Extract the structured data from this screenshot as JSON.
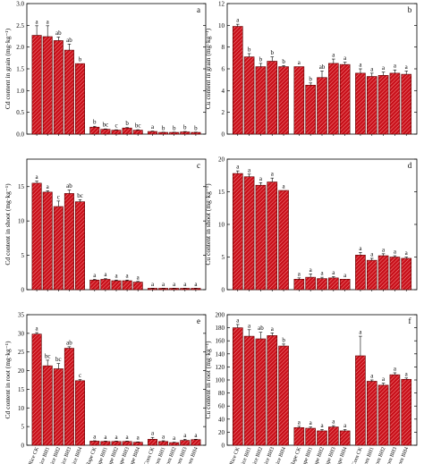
{
  "figure": {
    "category_labels": [
      "Rice CK",
      "Rice BH1",
      "Rice BH2",
      "Rice BH3",
      "Rice BH4",
      "Rape CK",
      "Rape BH1",
      "Rape BH2",
      "Rape BH3",
      "Rape BH4",
      "Corn CK",
      "Corn BH1",
      "Corn BH2",
      "Corn BH3",
      "Corn BH4"
    ],
    "bar_color": "#c8101a",
    "bar_edge": "#5a0000",
    "hatch_color": "#ff9a9a"
  },
  "chart_data": [
    {
      "panel": "a",
      "type": "bar",
      "ylabel": "Cd content in grain (mg·kg⁻¹)",
      "ylim": [
        0,
        3.0
      ],
      "yticks": [
        "0.0",
        "0.5",
        "1.0",
        "1.5",
        "2.0",
        "2.5",
        "3.0"
      ],
      "values": [
        2.27,
        2.24,
        2.15,
        1.93,
        1.62,
        0.16,
        0.11,
        0.09,
        0.14,
        0.09,
        0.06,
        0.04,
        0.04,
        0.05,
        0.04
      ],
      "errors": [
        0.22,
        0.25,
        0.08,
        0.14,
        0.0,
        0.02,
        0.01,
        0.01,
        0.01,
        0.01,
        0.01,
        0.005,
        0.005,
        0.01,
        0.005
      ],
      "letters": [
        "a",
        "a",
        "ab",
        "ab",
        "b",
        "b",
        "bc",
        "c",
        "b",
        "bc",
        "a",
        "b",
        "b",
        "b",
        "b"
      ],
      "show_xlabels": false
    },
    {
      "panel": "b",
      "type": "bar",
      "ylabel": "Cu content in grain (mg·kg⁻¹)",
      "ylim": [
        0,
        12
      ],
      "yticks": [
        "0",
        "2",
        "4",
        "6",
        "8",
        "10",
        "12"
      ],
      "values": [
        9.9,
        7.1,
        6.2,
        6.7,
        6.2,
        6.2,
        4.5,
        5.2,
        6.5,
        6.4,
        5.6,
        5.3,
        5.4,
        5.6,
        5.5
      ],
      "errors": [
        0.2,
        0.3,
        0.3,
        0.4,
        0.1,
        0.0,
        0.2,
        0.6,
        0.4,
        0.2,
        0.4,
        0.3,
        0.3,
        0.3,
        0.3
      ],
      "letters": [
        "a",
        "b",
        "b",
        "b",
        "b",
        "a",
        "b",
        "ab",
        "a",
        "a",
        "a",
        "a",
        "a",
        "a",
        "a"
      ],
      "show_xlabels": false
    },
    {
      "panel": "c",
      "type": "bar",
      "ylabel": "Cd content in shoot (mg·kg⁻¹)",
      "ylim": [
        0,
        19
      ],
      "yticks": [
        "0",
        "5",
        "10",
        "15"
      ],
      "values": [
        15.5,
        14.2,
        12.1,
        14.0,
        12.8,
        1.4,
        1.5,
        1.3,
        1.3,
        1.1,
        0.2,
        0.2,
        0.2,
        0.2,
        0.2
      ],
      "errors": [
        0.3,
        0.2,
        0.8,
        0.5,
        0.3,
        0.1,
        0.1,
        0.1,
        0.1,
        0.1,
        0.02,
        0.02,
        0.02,
        0.02,
        0.02
      ],
      "letters": [
        "a",
        "a",
        "c",
        "ab",
        "bc",
        "a",
        "a",
        "a",
        "a",
        "a",
        "a",
        "a",
        "a",
        "a",
        "a"
      ],
      "show_xlabels": false
    },
    {
      "panel": "d",
      "type": "bar",
      "ylabel": "Cu content in shoot (mg·kg⁻¹)",
      "ylim": [
        0,
        20
      ],
      "yticks": [
        "0",
        "5",
        "10",
        "15",
        "20"
      ],
      "values": [
        17.8,
        17.3,
        16.0,
        16.5,
        15.2,
        1.6,
        1.9,
        1.7,
        1.8,
        1.6,
        5.3,
        4.5,
        5.2,
        5.0,
        4.8
      ],
      "errors": [
        0.4,
        0.4,
        0.4,
        0.6,
        0.0,
        0.2,
        0.5,
        0.2,
        0.2,
        0.0,
        0.4,
        0.3,
        0.3,
        0.2,
        0.2
      ],
      "letters": [
        "a",
        "a",
        "a",
        "a",
        "a",
        "a",
        "a",
        "a",
        "a",
        "a",
        "a",
        "a",
        "a",
        "a",
        "a"
      ],
      "show_xlabels": false
    },
    {
      "panel": "e",
      "type": "bar",
      "ylabel": "Cd content in root (mg·kg⁻¹)",
      "ylim": [
        0,
        35
      ],
      "yticks": [
        "0",
        "5",
        "10",
        "15",
        "20",
        "25",
        "30",
        "35"
      ],
      "values": [
        29.8,
        21.3,
        20.5,
        26.0,
        17.3,
        1.1,
        1.0,
        1.0,
        1.0,
        0.8,
        1.6,
        1.0,
        0.7,
        1.3,
        1.5
      ],
      "errors": [
        0.4,
        1.5,
        1.4,
        0.4,
        0.3,
        0.1,
        0.1,
        0.1,
        0.1,
        0.1,
        0.5,
        0.2,
        0.1,
        0.3,
        0.1
      ],
      "letters": [
        "a",
        "bc",
        "bc",
        "ab",
        "c",
        "a",
        "a",
        "a",
        "a",
        "a",
        "a",
        "a",
        "a",
        "a",
        "a"
      ],
      "show_xlabels": true
    },
    {
      "panel": "f",
      "type": "bar",
      "ylabel": "Cu content in root (mg·kg⁻¹)",
      "ylim": [
        0,
        200
      ],
      "yticks": [
        "0",
        "20",
        "40",
        "60",
        "80",
        "100",
        "120",
        "140",
        "160",
        "180",
        "200"
      ],
      "values": [
        180,
        167,
        163,
        168,
        152,
        27,
        26,
        22,
        28,
        22,
        137,
        98,
        92,
        108,
        101
      ],
      "errors": [
        5,
        10,
        10,
        4,
        3,
        2,
        2,
        2,
        2,
        2,
        30,
        2,
        3,
        3,
        2
      ],
      "letters": [
        "a",
        "a",
        "ab",
        "a",
        "b",
        "a",
        "a",
        "a",
        "a",
        "a",
        "a",
        "a",
        "a",
        "a",
        "a"
      ],
      "show_xlabels": true
    }
  ]
}
